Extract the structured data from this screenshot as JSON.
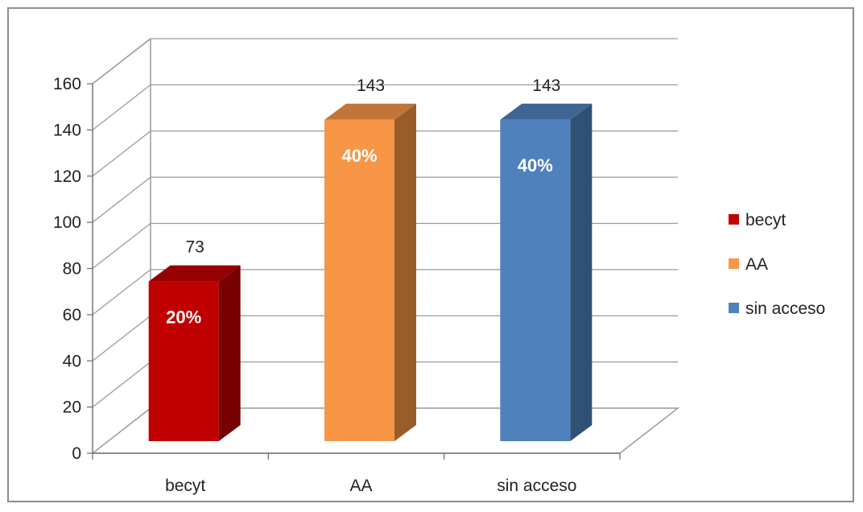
{
  "chart_data": {
    "type": "bar",
    "categories": [
      "becyt",
      "AA",
      "sin acceso"
    ],
    "values": [
      73,
      143,
      143
    ],
    "percent_labels": [
      "20%",
      "40%",
      "40%"
    ],
    "ylim": [
      0,
      160
    ],
    "yticks": [
      0,
      20,
      40,
      60,
      80,
      100,
      120,
      140,
      160
    ],
    "colors": [
      "#c00000",
      "#f79646",
      "#4f81bd"
    ],
    "grid": true,
    "legend_position": "right",
    "title": "",
    "xlabel": "",
    "ylabel": ""
  }
}
